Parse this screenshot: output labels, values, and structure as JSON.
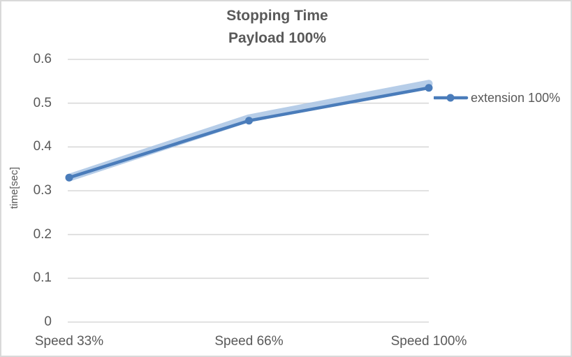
{
  "chart": {
    "title_line1": "Stopping Time",
    "title_line2": "Payload 100%"
  },
  "chart_data": {
    "type": "line",
    "title": "Stopping Time — Payload 100%",
    "categories": [
      "Speed 33%",
      "Speed 66%",
      "Speed 100%"
    ],
    "series": [
      {
        "name": "extension 100%",
        "values": [
          0.33,
          0.46,
          0.535
        ]
      }
    ],
    "xlabel": "",
    "ylabel": "time[sec]",
    "ylim": [
      0,
      0.6
    ],
    "y_tick_labels": [
      "0",
      "0.1",
      "0.2",
      "0.3",
      "0.4",
      "0.5",
      "0.6"
    ],
    "y_tick_values": [
      0,
      0.1,
      0.2,
      0.3,
      0.4,
      0.5,
      0.6
    ],
    "grid": "horizontal",
    "legend_position": "right",
    "marker": "circle",
    "colors": {
      "series_line": "#4a7cba",
      "series_glow": "#a9c4e4",
      "gridline": "#d9d9d9",
      "text": "#595959",
      "border": "#d9d9d9",
      "background": "#ffffff"
    }
  }
}
